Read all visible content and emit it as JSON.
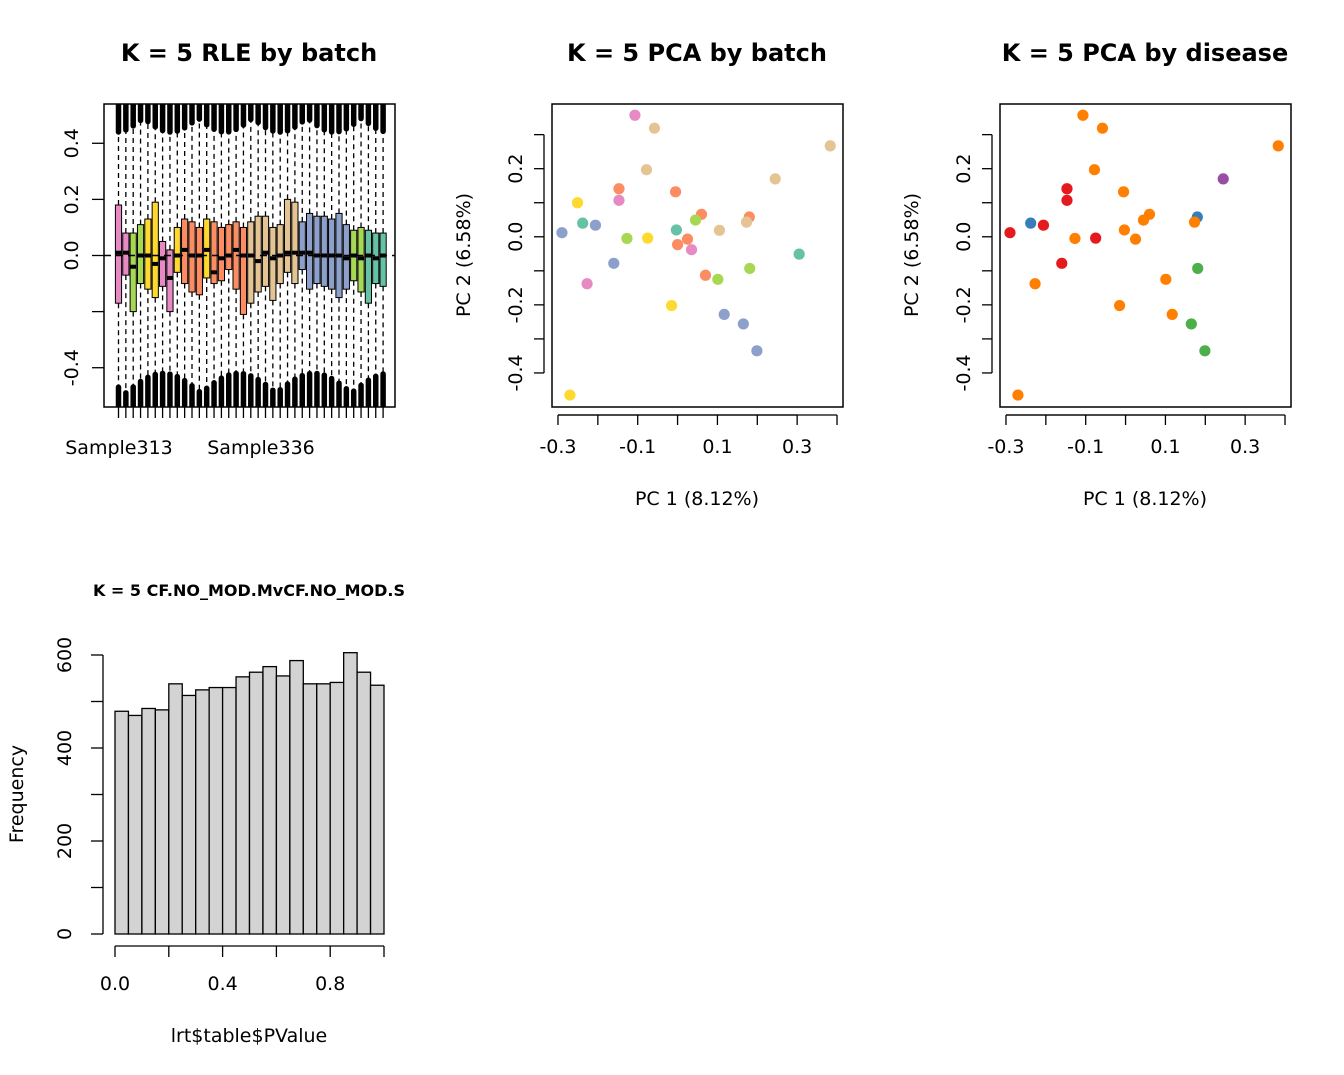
{
  "chart_data": [
    {
      "type": "boxplot",
      "title": "K = 5 RLE by batch",
      "xlabel": "",
      "ylabel": "",
      "ylim": [
        -0.54,
        0.54
      ],
      "yticks": [
        -0.4,
        0.0,
        0.2,
        0.4
      ],
      "ytick_labels": [
        "-0.4",
        "0.0",
        "0.2",
        "0.4"
      ],
      "xtick_labels_shown": [
        "Sample313",
        "Sample336"
      ],
      "grid": false,
      "boxes": [
        {
          "color": "#E78AC3",
          "q1": -0.17,
          "median": 0.01,
          "q3": 0.18
        },
        {
          "color": "#E78AC3",
          "q1": -0.07,
          "median": 0.01,
          "q3": 0.08
        },
        {
          "color": "#A6D854",
          "q1": -0.2,
          "median": -0.04,
          "q3": 0.08
        },
        {
          "color": "#A6D854",
          "q1": -0.1,
          "median": 0.0,
          "q3": 0.11
        },
        {
          "color": "#FFD92F",
          "q1": -0.12,
          "median": 0.0,
          "q3": 0.13
        },
        {
          "color": "#FFD92F",
          "q1": -0.15,
          "median": -0.03,
          "q3": 0.19
        },
        {
          "color": "#E78AC3",
          "q1": -0.11,
          "median": -0.01,
          "q3": 0.05
        },
        {
          "color": "#E78AC3",
          "q1": -0.2,
          "median": -0.08,
          "q3": 0.02
        },
        {
          "color": "#FFD92F",
          "q1": -0.06,
          "median": 0.0,
          "q3": 0.1
        },
        {
          "color": "#FC8D62",
          "q1": -0.1,
          "median": 0.02,
          "q3": 0.13
        },
        {
          "color": "#FC8D62",
          "q1": -0.13,
          "median": 0.0,
          "q3": 0.12
        },
        {
          "color": "#FC8D62",
          "q1": -0.14,
          "median": 0.0,
          "q3": 0.1
        },
        {
          "color": "#FFD92F",
          "q1": -0.08,
          "median": 0.02,
          "q3": 0.13
        },
        {
          "color": "#FC8D62",
          "q1": -0.1,
          "median": -0.06,
          "q3": 0.12
        },
        {
          "color": "#FC8D62",
          "q1": -0.09,
          "median": -0.01,
          "q3": 0.1
        },
        {
          "color": "#FC8D62",
          "q1": -0.05,
          "median": 0.0,
          "q3": 0.11
        },
        {
          "color": "#FC8D62",
          "q1": -0.12,
          "median": 0.02,
          "q3": 0.12
        },
        {
          "color": "#FC8D62",
          "q1": -0.21,
          "median": 0.0,
          "q3": 0.1
        },
        {
          "color": "#E5C494",
          "q1": -0.17,
          "median": 0.0,
          "q3": 0.12
        },
        {
          "color": "#E5C494",
          "q1": -0.13,
          "median": -0.02,
          "q3": 0.14
        },
        {
          "color": "#E5C494",
          "q1": -0.11,
          "median": 0.01,
          "q3": 0.14
        },
        {
          "color": "#E5C494",
          "q1": -0.16,
          "median": -0.01,
          "q3": 0.1
        },
        {
          "color": "#E5C494",
          "q1": -0.1,
          "median": 0.0,
          "q3": 0.11
        },
        {
          "color": "#E5C494",
          "q1": -0.06,
          "median": 0.01,
          "q3": 0.2
        },
        {
          "color": "#E5C494",
          "q1": -0.1,
          "median": 0.01,
          "q3": 0.19
        },
        {
          "color": "#8DA0CB",
          "q1": -0.05,
          "median": 0.01,
          "q3": 0.12
        },
        {
          "color": "#8DA0CB",
          "q1": -0.12,
          "median": 0.01,
          "q3": 0.15
        },
        {
          "color": "#8DA0CB",
          "q1": -0.1,
          "median": 0.0,
          "q3": 0.14
        },
        {
          "color": "#8DA0CB",
          "q1": -0.11,
          "median": 0.0,
          "q3": 0.14
        },
        {
          "color": "#8DA0CB",
          "q1": -0.12,
          "median": 0.0,
          "q3": 0.13
        },
        {
          "color": "#8DA0CB",
          "q1": -0.15,
          "median": 0.0,
          "q3": 0.15
        },
        {
          "color": "#8DA0CB",
          "q1": -0.12,
          "median": -0.01,
          "q3": 0.11
        },
        {
          "color": "#A6D854",
          "q1": -0.09,
          "median": 0.0,
          "q3": 0.09
        },
        {
          "color": "#A6D854",
          "q1": -0.13,
          "median": -0.01,
          "q3": 0.1
        },
        {
          "color": "#66C2A5",
          "q1": -0.17,
          "median": 0.0,
          "q3": 0.09
        },
        {
          "color": "#66C2A5",
          "q1": -0.1,
          "median": -0.01,
          "q3": 0.08
        },
        {
          "color": "#66C2A5",
          "q1": -0.11,
          "median": 0.0,
          "q3": 0.08
        }
      ]
    },
    {
      "type": "scatter",
      "title": "K = 5 PCA by batch",
      "xlabel": "PC 1 (8.12%)",
      "ylabel": "PC 2 (6.58%)",
      "xlim": [
        -0.315,
        0.415
      ],
      "ylim": [
        -0.5,
        0.39
      ],
      "xticks": [
        -0.3,
        -0.1,
        0.1,
        0.3
      ],
      "xtick_labels": [
        "-0.3",
        "-0.1",
        "0.1",
        "0.3"
      ],
      "yticks": [
        -0.4,
        -0.2,
        0.0,
        0.2
      ],
      "ytick_labels": [
        "-0.4",
        "-0.2",
        "0.0",
        "0.2"
      ],
      "grid": false,
      "points": [
        {
          "x": -0.107,
          "y": 0.357,
          "color": "#E78AC3"
        },
        {
          "x": -0.058,
          "y": 0.319,
          "color": "#E5C494"
        },
        {
          "x": 0.383,
          "y": 0.267,
          "color": "#E5C494"
        },
        {
          "x": -0.078,
          "y": 0.197,
          "color": "#E5C494"
        },
        {
          "x": 0.245,
          "y": 0.17,
          "color": "#E5C494"
        },
        {
          "x": -0.147,
          "y": 0.141,
          "color": "#FC8D62"
        },
        {
          "x": -0.005,
          "y": 0.132,
          "color": "#FC8D62"
        },
        {
          "x": -0.251,
          "y": 0.1,
          "color": "#FFD92F"
        },
        {
          "x": -0.147,
          "y": 0.107,
          "color": "#E78AC3"
        },
        {
          "x": 0.06,
          "y": 0.066,
          "color": "#FC8D62"
        },
        {
          "x": 0.18,
          "y": 0.058,
          "color": "#FC8D62"
        },
        {
          "x": 0.045,
          "y": 0.049,
          "color": "#A6D854"
        },
        {
          "x": 0.173,
          "y": 0.043,
          "color": "#E5C494"
        },
        {
          "x": -0.238,
          "y": 0.04,
          "color": "#66C2A5"
        },
        {
          "x": -0.206,
          "y": 0.034,
          "color": "#8DA0CB"
        },
        {
          "x": -0.003,
          "y": 0.02,
          "color": "#66C2A5"
        },
        {
          "x": 0.105,
          "y": 0.019,
          "color": "#E5C494"
        },
        {
          "x": -0.29,
          "y": 0.012,
          "color": "#8DA0CB"
        },
        {
          "x": -0.127,
          "y": -0.005,
          "color": "#A6D854"
        },
        {
          "x": -0.075,
          "y": -0.004,
          "color": "#FFD92F"
        },
        {
          "x": 0.025,
          "y": -0.007,
          "color": "#FC8D62"
        },
        {
          "x": 0.0,
          "y": -0.023,
          "color": "#FC8D62"
        },
        {
          "x": 0.035,
          "y": -0.038,
          "color": "#E78AC3"
        },
        {
          "x": 0.305,
          "y": -0.051,
          "color": "#66C2A5"
        },
        {
          "x": -0.16,
          "y": -0.078,
          "color": "#8DA0CB"
        },
        {
          "x": 0.181,
          "y": -0.093,
          "color": "#A6D854"
        },
        {
          "x": 0.07,
          "y": -0.113,
          "color": "#FC8D62"
        },
        {
          "x": 0.101,
          "y": -0.125,
          "color": "#A6D854"
        },
        {
          "x": -0.227,
          "y": -0.138,
          "color": "#E78AC3"
        },
        {
          "x": -0.015,
          "y": -0.202,
          "color": "#FFD92F"
        },
        {
          "x": 0.117,
          "y": -0.228,
          "color": "#8DA0CB"
        },
        {
          "x": 0.165,
          "y": -0.256,
          "color": "#8DA0CB"
        },
        {
          "x": 0.199,
          "y": -0.335,
          "color": "#8DA0CB"
        },
        {
          "x": -0.27,
          "y": -0.465,
          "color": "#FFD92F"
        }
      ]
    },
    {
      "type": "scatter",
      "title": "K = 5 PCA by disease",
      "xlabel": "PC 1 (8.12%)",
      "ylabel": "PC 2 (6.58%)",
      "xlim": [
        -0.315,
        0.415
      ],
      "ylim": [
        -0.5,
        0.39
      ],
      "xticks": [
        -0.3,
        -0.1,
        0.1,
        0.3
      ],
      "xtick_labels": [
        "-0.3",
        "-0.1",
        "0.1",
        "0.3"
      ],
      "yticks": [
        -0.4,
        -0.2,
        0.0,
        0.2
      ],
      "ytick_labels": [
        "-0.4",
        "-0.2",
        "0.0",
        "0.2"
      ],
      "grid": false,
      "points": [
        {
          "x": -0.107,
          "y": 0.357,
          "color": "#FF7F00"
        },
        {
          "x": -0.058,
          "y": 0.319,
          "color": "#FF7F00"
        },
        {
          "x": 0.383,
          "y": 0.267,
          "color": "#FF7F00"
        },
        {
          "x": -0.078,
          "y": 0.197,
          "color": "#FF7F00"
        },
        {
          "x": 0.245,
          "y": 0.17,
          "color": "#984EA3"
        },
        {
          "x": -0.147,
          "y": 0.141,
          "color": "#E41A1C"
        },
        {
          "x": -0.005,
          "y": 0.132,
          "color": "#FF7F00"
        },
        {
          "x": -0.147,
          "y": 0.107,
          "color": "#E41A1C"
        },
        {
          "x": 0.06,
          "y": 0.066,
          "color": "#FF7F00"
        },
        {
          "x": 0.18,
          "y": 0.058,
          "color": "#377EB8"
        },
        {
          "x": 0.045,
          "y": 0.049,
          "color": "#FF7F00"
        },
        {
          "x": 0.173,
          "y": 0.043,
          "color": "#FF7F00"
        },
        {
          "x": -0.238,
          "y": 0.04,
          "color": "#377EB8"
        },
        {
          "x": -0.206,
          "y": 0.034,
          "color": "#E41A1C"
        },
        {
          "x": -0.003,
          "y": 0.02,
          "color": "#FF7F00"
        },
        {
          "x": -0.29,
          "y": 0.012,
          "color": "#E41A1C"
        },
        {
          "x": -0.127,
          "y": -0.005,
          "color": "#FF7F00"
        },
        {
          "x": -0.075,
          "y": -0.004,
          "color": "#E41A1C"
        },
        {
          "x": 0.025,
          "y": -0.007,
          "color": "#FF7F00"
        },
        {
          "x": -0.16,
          "y": -0.078,
          "color": "#E41A1C"
        },
        {
          "x": 0.181,
          "y": -0.093,
          "color": "#4DAF4A"
        },
        {
          "x": 0.101,
          "y": -0.125,
          "color": "#FF7F00"
        },
        {
          "x": -0.227,
          "y": -0.138,
          "color": "#FF7F00"
        },
        {
          "x": -0.015,
          "y": -0.202,
          "color": "#FF7F00"
        },
        {
          "x": 0.117,
          "y": -0.228,
          "color": "#FF7F00"
        },
        {
          "x": 0.165,
          "y": -0.256,
          "color": "#4DAF4A"
        },
        {
          "x": 0.199,
          "y": -0.335,
          "color": "#4DAF4A"
        },
        {
          "x": -0.27,
          "y": -0.465,
          "color": "#FF7F00"
        }
      ]
    },
    {
      "type": "histogram",
      "title": "K = 5 CF.NO_MOD.MvCF.NO_MOD.S",
      "xlabel": "lrt$table$PValue",
      "ylabel": "Frequency",
      "xlim": [
        0.0,
        1.0
      ],
      "ylim": [
        0,
        640
      ],
      "xticks": [
        0.0,
        0.2,
        0.4,
        0.6,
        0.8,
        1.0
      ],
      "xtick_labels": [
        "0.0",
        "",
        "0.4",
        "",
        "0.8",
        ""
      ],
      "yticks": [
        0,
        100,
        200,
        300,
        400,
        500,
        600
      ],
      "ytick_labels": [
        "0",
        "",
        "200",
        "",
        "400",
        "",
        "600"
      ],
      "bin_width": 0.05,
      "bins_start": 0.0,
      "values": [
        479,
        470,
        485,
        482,
        538,
        513,
        525,
        530,
        530,
        553,
        563,
        575,
        555,
        588,
        538,
        538,
        541,
        605,
        563,
        535
      ],
      "bar_color": "#D3D3D3",
      "grid": false
    }
  ]
}
